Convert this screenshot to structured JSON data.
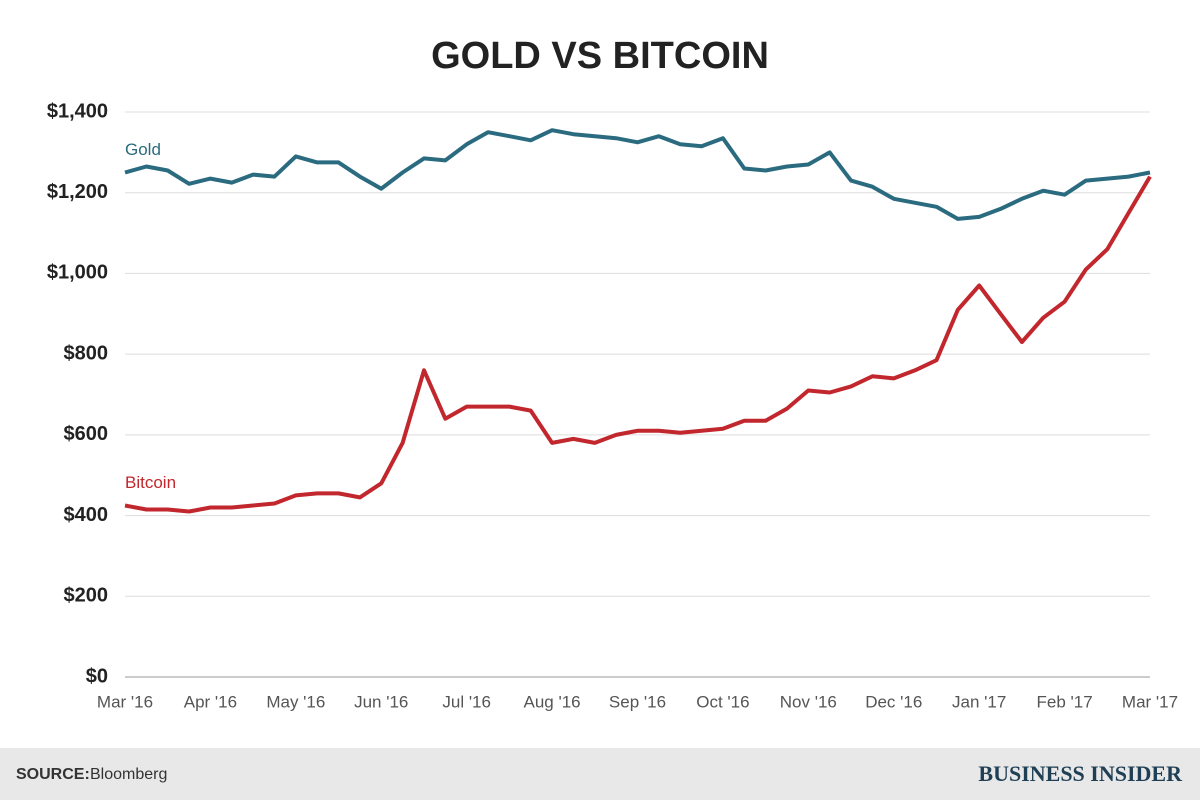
{
  "chart_data": {
    "type": "line",
    "title": "GOLD VS BITCOIN",
    "categories": [
      "Mar '16",
      null,
      null,
      null,
      "Apr '16",
      null,
      null,
      null,
      "May '16",
      null,
      null,
      null,
      "Jun '16",
      null,
      null,
      null,
      "Jul '16",
      null,
      null,
      null,
      "Aug '16",
      null,
      null,
      null,
      "Sep '16",
      null,
      null,
      null,
      "Oct '16",
      null,
      null,
      null,
      "Nov '16",
      null,
      null,
      null,
      "Dec '16",
      null,
      null,
      null,
      "Jan '17",
      null,
      null,
      null,
      "Feb '17",
      null,
      null,
      null,
      "Mar '17"
    ],
    "series": [
      {
        "name": "Gold",
        "color": "#2b6b80",
        "values": [
          1250,
          1265,
          1255,
          1222,
          1235,
          1225,
          1245,
          1240,
          1290,
          1275,
          1275,
          1240,
          1210,
          1250,
          1285,
          1280,
          1320,
          1350,
          1340,
          1330,
          1355,
          1345,
          1340,
          1335,
          1325,
          1340,
          1320,
          1315,
          1335,
          1260,
          1255,
          1265,
          1270,
          1300,
          1230,
          1215,
          1185,
          1175,
          1165,
          1135,
          1140,
          1160,
          1185,
          1205,
          1195,
          1230,
          1235,
          1240,
          1250
        ]
      },
      {
        "name": "Bitcoin",
        "color": "#c1272d",
        "values": [
          425,
          415,
          415,
          410,
          420,
          420,
          425,
          430,
          450,
          455,
          455,
          445,
          480,
          580,
          760,
          640,
          670,
          670,
          670,
          660,
          580,
          590,
          580,
          600,
          610,
          610,
          605,
          610,
          615,
          635,
          635,
          665,
          710,
          705,
          720,
          745,
          740,
          760,
          785,
          910,
          970,
          900,
          830,
          890,
          930,
          1010,
          1060,
          1150,
          1240
        ]
      }
    ],
    "ylim": [
      0,
      1400
    ],
    "yticks": [
      {
        "value": 0,
        "label": "$0"
      },
      {
        "value": 200,
        "label": "$200"
      },
      {
        "value": 400,
        "label": "$400"
      },
      {
        "value": 600,
        "label": "$600"
      },
      {
        "value": 800,
        "label": "$800"
      },
      {
        "value": 1000,
        "label": "$1,000"
      },
      {
        "value": 1200,
        "label": "$1,200"
      },
      {
        "value": 1400,
        "label": "$1,400"
      }
    ],
    "grid": true,
    "source_label": "SOURCE:",
    "source": "Bloomberg",
    "brand": "BUSINESS INSIDER"
  }
}
